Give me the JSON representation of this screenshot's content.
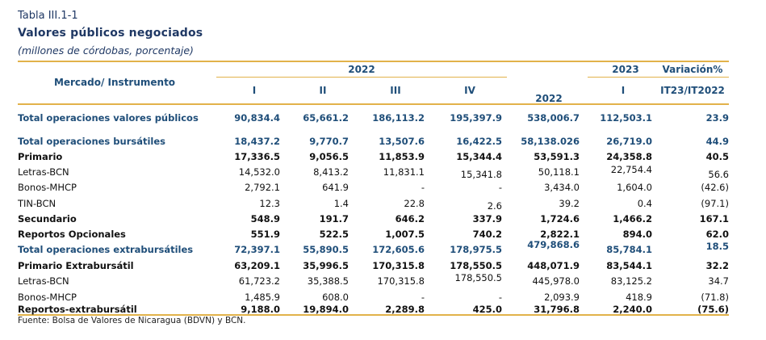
{
  "header": {
    "label": "Tabla III.1-1",
    "title": "Valores públicos negociados",
    "subtitle": "(millones de córdobas, porcentaje)"
  },
  "columns": {
    "first": "Mercado/ Instrumento",
    "year_2022": "2022",
    "year_2023": "2023",
    "variation": "Variación%",
    "q1": "I",
    "q2": "II",
    "q3": "III",
    "q4": "IV",
    "total_2022": "2022",
    "q1_2023": "I",
    "variation_sub": "IT23/IT2022"
  },
  "rows": [
    {
      "label": "Total operaciones valores públicos",
      "values": [
        "90,834.4",
        "65,661.2",
        "186,113.2",
        "195,397.9",
        "538,006.7",
        "112,503.1",
        "23.9"
      ]
    },
    {
      "label": "Total operaciones bursátiles",
      "values": [
        "18,437.2",
        "9,770.7",
        "13,507.6",
        "16,422.5",
        "58,138.026",
        "26,719.0",
        "44.9"
      ]
    },
    {
      "label": "Primario",
      "values": [
        "17,336.5",
        "9,056.5",
        "11,853.9",
        "15,344.4",
        "53,591.3",
        "24,358.8",
        "40.5"
      ]
    },
    {
      "label": "Letras-BCN",
      "values": [
        "14,532.0",
        "8,413.2",
        "11,831.1",
        "15,341.8",
        "50,118.1",
        "22,754.4",
        "56.6"
      ]
    },
    {
      "label": "Bonos-MHCP",
      "values": [
        "2,792.1",
        "641.9",
        "-",
        "-",
        "3,434.0",
        "1,604.0",
        "(42.6)"
      ]
    },
    {
      "label": "TIN-BCN",
      "values": [
        "12.3",
        "1.4",
        "22.8",
        "2.6",
        "39.2",
        "0.4",
        "(97.1)"
      ]
    },
    {
      "label": "Secundario",
      "values": [
        "548.9",
        "191.7",
        "646.2",
        "337.9",
        "1,724.6",
        "1,466.2",
        "167.1"
      ]
    },
    {
      "label": "Reportos Opcionales",
      "values": [
        "551.9",
        "522.5",
        "1,007.5",
        "740.2",
        "2,822.1",
        "894.0",
        "62.0"
      ]
    },
    {
      "label": "Total operaciones extrabursátiles",
      "values": [
        "72,397.1",
        "55,890.5",
        "172,605.6",
        "178,975.5",
        "479,868.6",
        "85,784.1",
        "18.5"
      ]
    },
    {
      "label": "Primario Extrabursátil",
      "values": [
        "63,209.1",
        "35,996.5",
        "170,315.8",
        "178,550.5",
        "448,071.9",
        "83,544.1",
        "32.2"
      ]
    },
    {
      "label": "Letras-BCN",
      "values": [
        "61,723.2",
        "35,388.5",
        "170,315.8",
        "178,550.5",
        "445,978.0",
        "83,125.2",
        "34.7"
      ]
    },
    {
      "label": "Bonos-MHCP",
      "values": [
        "1,485.9",
        "608.0",
        "-",
        "-",
        "2,093.9",
        "418.9",
        "(71.8)"
      ]
    },
    {
      "label": "Reportos-extrabursátil",
      "values": [
        "9,188.0",
        "19,894.0",
        "2,289.8",
        "425.0",
        "31,796.8",
        "2,240.0",
        "(75.6)"
      ]
    }
  ],
  "footer": "Fuente: Bolsa de Valores de Nicaragua (BDVN) y BCN."
}
